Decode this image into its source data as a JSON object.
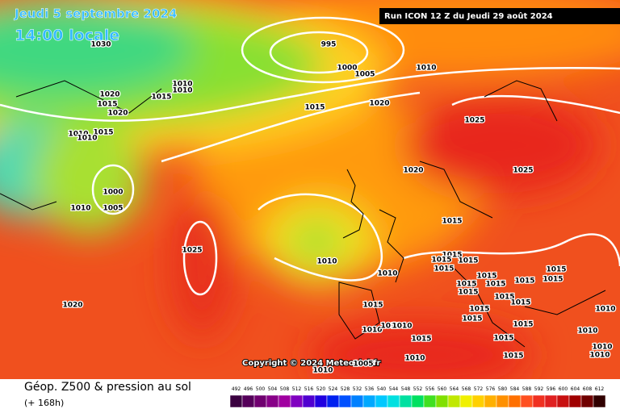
{
  "header": {
    "date": "Jeudi 5 septembre 2024",
    "time": "14:00 locale",
    "run": "Run ICON 12 Z du Jeudi 29 août 2024"
  },
  "footer": {
    "title": "Géop. Z500 & pression au sol",
    "lead": "(+ 168h)",
    "copyright": "Copyright © 2024 Meteociel.fr"
  },
  "legend": {
    "values": [
      492,
      496,
      500,
      504,
      508,
      512,
      516,
      520,
      524,
      528,
      532,
      536,
      540,
      544,
      548,
      552,
      556,
      560,
      564,
      568,
      572,
      576,
      580,
      584,
      588,
      592,
      596,
      600,
      604,
      608,
      612
    ]
  },
  "isobars": [
    995,
    1000,
    1005,
    1010,
    1015,
    1020,
    1020,
    1015,
    1020,
    1015,
    1010,
    1010,
    1015,
    1010,
    1010,
    1000,
    1010,
    1005,
    1025,
    1020,
    1010,
    1010,
    1020,
    1025,
    1025,
    1015,
    1015,
    1015,
    1015,
    1015,
    1015,
    1015,
    1015,
    1015,
    1015,
    1015,
    1015,
    1015,
    1015,
    1015,
    1015,
    1015,
    1015,
    1015,
    1015,
    1015,
    1010,
    1010,
    1010,
    1010,
    1010,
    1010,
    1010,
    1010,
    1005,
    1010,
    1030
  ]
}
